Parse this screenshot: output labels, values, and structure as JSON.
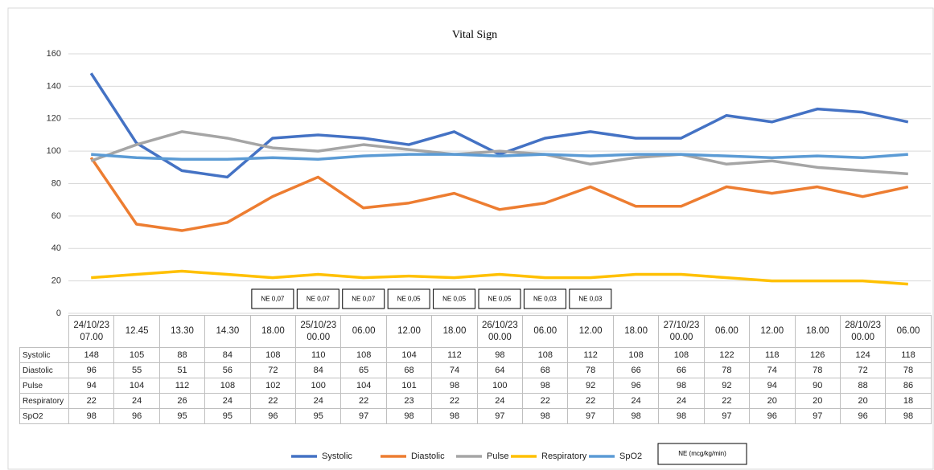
{
  "chart_data": {
    "type": "line",
    "title": "Vital Sign",
    "categories": [
      "24/10/23\n07.00",
      "12.45",
      "13.30",
      "14.30",
      "18.00",
      "25/10/23\n00.00",
      "06.00",
      "12.00",
      "18.00",
      "26/10/23\n00.00",
      "06.00",
      "12.00",
      "18.00",
      "27/10/23\n00.00",
      "06.00",
      "12.00",
      "18.00",
      "28/10/23\n00.00",
      "06.00"
    ],
    "series": [
      {
        "name": "Systolic",
        "color": "#4472c4",
        "values": [
          148,
          105,
          88,
          84,
          108,
          110,
          108,
          104,
          112,
          98,
          108,
          112,
          108,
          108,
          122,
          118,
          126,
          124,
          118
        ]
      },
      {
        "name": "Diastolic",
        "color": "#ed7d31",
        "values": [
          96,
          55,
          51,
          56,
          72,
          84,
          65,
          68,
          74,
          64,
          68,
          78,
          66,
          66,
          78,
          74,
          78,
          72,
          78
        ]
      },
      {
        "name": "Pulse",
        "color": "#a5a5a5",
        "values": [
          94,
          104,
          112,
          108,
          102,
          100,
          104,
          101,
          98,
          100,
          98,
          92,
          96,
          98,
          92,
          94,
          90,
          88,
          86
        ]
      },
      {
        "name": "Respiratory",
        "color": "#ffc000",
        "values": [
          22,
          24,
          26,
          24,
          22,
          24,
          22,
          23,
          22,
          24,
          22,
          22,
          24,
          24,
          22,
          20,
          20,
          20,
          18
        ]
      },
      {
        "name": "SpO2",
        "color": "#5b9bd5",
        "values": [
          98,
          96,
          95,
          95,
          96,
          95,
          97,
          98,
          98,
          97,
          98,
          97,
          98,
          98,
          97,
          96,
          97,
          96,
          98
        ]
      }
    ],
    "ylim": [
      0,
      160
    ],
    "yticks": [
      0,
      20,
      40,
      60,
      80,
      100,
      120,
      140,
      160
    ],
    "grid": true,
    "infusion": [
      null,
      null,
      null,
      null,
      "NE 0,07",
      "NE 0,07",
      "NE 0,07",
      "NE 0,05",
      "NE 0,05",
      "NE 0,05",
      "NE 0,03",
      "NE 0,03",
      null,
      null,
      null,
      null,
      null,
      null,
      null
    ],
    "infusion_legend": "NE (mcg/kg/min)"
  }
}
